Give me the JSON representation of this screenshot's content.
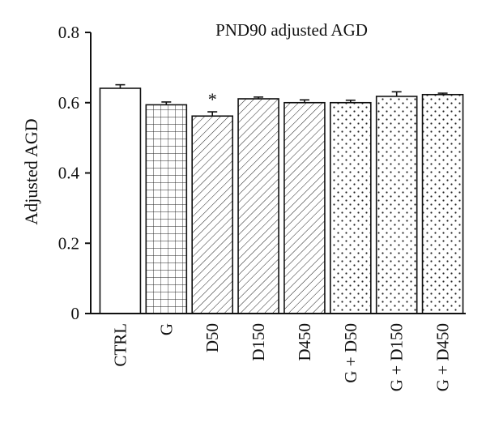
{
  "chart_data": {
    "type": "bar",
    "title": "PND90 adjusted AGD",
    "xlabel": "",
    "ylabel": "Adjusted AGD",
    "ylim": [
      0,
      0.8
    ],
    "yticks": [
      "0",
      "0.2",
      "0.4",
      "0.6",
      "0.8"
    ],
    "categories": [
      "CTRL",
      "G",
      "D50",
      "D150",
      "D450",
      "G + D50",
      "G + D150",
      "G + D450"
    ],
    "values": [
      0.641,
      0.594,
      0.562,
      0.611,
      0.6,
      0.6,
      0.618,
      0.623
    ],
    "errors": [
      0.01,
      0.008,
      0.012,
      0.005,
      0.008,
      0.007,
      0.013,
      0.004
    ],
    "patterns": [
      "none",
      "grid",
      "diagonal",
      "diagonal",
      "diagonal",
      "dots",
      "dots",
      "dots"
    ],
    "annotations": [
      {
        "category": "D50",
        "text": "*"
      }
    ],
    "grid": false,
    "legend": "none",
    "colors": {
      "bar_outline": "#111111",
      "pattern": "#222222",
      "background": "#ffffff"
    }
  }
}
